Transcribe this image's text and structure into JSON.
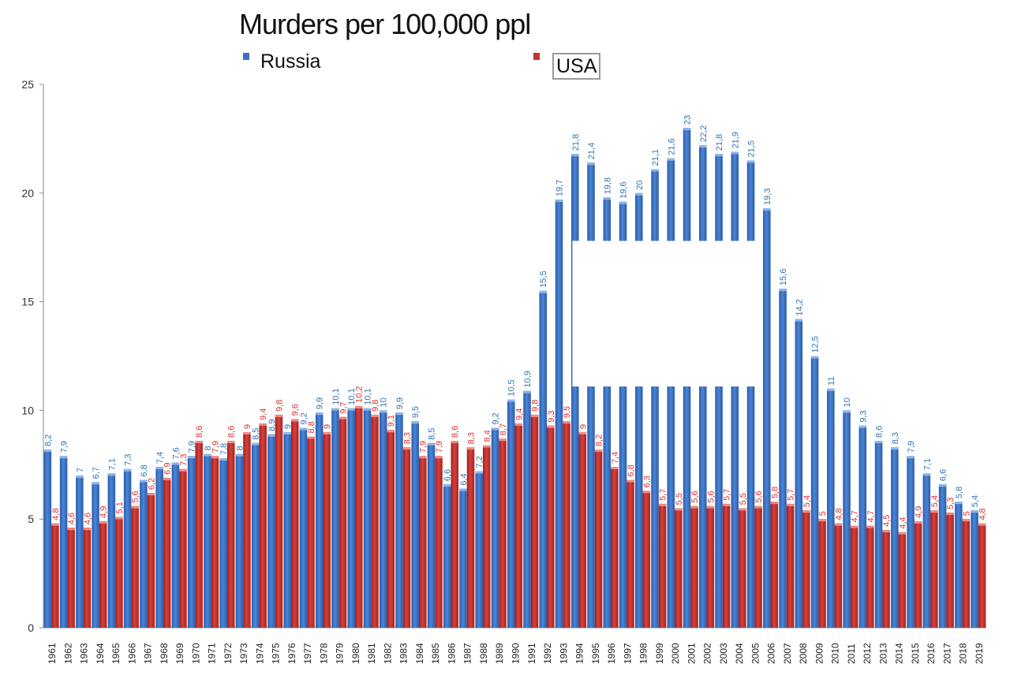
{
  "chart_data": {
    "type": "bar",
    "title": "Murders per 100,000 ppl",
    "xlabel": "",
    "ylabel": "",
    "ylim": [
      0,
      25
    ],
    "yticks": [
      0,
      5,
      10,
      15,
      20,
      25
    ],
    "grid": false,
    "legend_placement": "top",
    "categories": [
      "1961",
      "1962",
      "1963",
      "1964",
      "1965",
      "1966",
      "1967",
      "1968",
      "1969",
      "1970",
      "1971",
      "1972",
      "1973",
      "1974",
      "1975",
      "1976",
      "1977",
      "1978",
      "1979",
      "1980",
      "1981",
      "1982",
      "1983",
      "1984",
      "1985",
      "1986",
      "1987",
      "1988",
      "1989",
      "1990",
      "1991",
      "1992",
      "1993",
      "1994",
      "1995",
      "1996",
      "1997",
      "1998",
      "1999",
      "2000",
      "2001",
      "2002",
      "2003",
      "2004",
      "2005",
      "2006",
      "2007",
      "2008",
      "2009",
      "2010",
      "2011",
      "2012",
      "2013",
      "2014",
      "2015",
      "2016",
      "2017",
      "2018",
      "2019"
    ],
    "series": [
      {
        "name": "Russia",
        "color": "#3a6fc4",
        "values": [
          8.2,
          7.9,
          7,
          6.7,
          7.1,
          7.3,
          6.8,
          7.4,
          7.6,
          7.9,
          8,
          7.8,
          8,
          8.5,
          8.9,
          9,
          9.2,
          9.9,
          10.1,
          10.1,
          10.1,
          10,
          9.9,
          9.5,
          8.5,
          6.6,
          6.4,
          7.2,
          9.2,
          10.5,
          10.9,
          15.5,
          19.7,
          21.8,
          21.4,
          19.8,
          19.6,
          20,
          21.1,
          21.6,
          23,
          22.2,
          21.8,
          21.9,
          21.5,
          19.3,
          15.6,
          14.2,
          12.5,
          11,
          10,
          9.3,
          8.6,
          8.3,
          7.9,
          7.1,
          6.6,
          5.8,
          5.4
        ],
        "labels": [
          "8,2",
          "7,9",
          "7",
          "6,7",
          "7,1",
          "7,3",
          "6,8",
          "7,4",
          "7,6",
          "7,9",
          "8",
          "7,8",
          "8",
          "8,5",
          "8,9",
          "9",
          "9,2",
          "9,9",
          "10,1",
          "10,1",
          "10,1",
          "10",
          "9,9",
          "9,5",
          "8,5",
          "6,6",
          "6,4",
          "7,2",
          "9,2",
          "10,5",
          "10,9",
          "15,5",
          "19,7",
          "21,8",
          "21,4",
          "19,8",
          "19,6",
          "20",
          "21,1",
          "21,6",
          "23",
          "22,2",
          "21,8",
          "21,9",
          "21,5",
          "19,3",
          "15,6",
          "14,2",
          "12,5",
          "11",
          "10",
          "9,3",
          "8,6",
          "8,3",
          "7,9",
          "7,1",
          "6,6",
          "5,8",
          "5,4"
        ]
      },
      {
        "name": "USA",
        "color": "#c8302e",
        "values": [
          4.8,
          4.6,
          4.6,
          4.9,
          5.1,
          5.6,
          6.2,
          6.9,
          7.3,
          8.6,
          7.9,
          8.6,
          9,
          9.4,
          9.8,
          9.6,
          8.8,
          9,
          9.7,
          10.2,
          9.8,
          9.1,
          8.3,
          7.9,
          7.9,
          8.6,
          8.3,
          8.4,
          8.7,
          9.4,
          9.8,
          9.3,
          9.5,
          9,
          8.2,
          7.4,
          6.8,
          6.3,
          5.7,
          5.5,
          5.6,
          5.6,
          5.7,
          5.5,
          5.6,
          5.8,
          5.7,
          5.4,
          5,
          4.8,
          4.7,
          4.7,
          4.5,
          4.4,
          4.9,
          5.4,
          5.3,
          5,
          4.8
        ],
        "labels": [
          "4,8",
          "4,6",
          "4,6",
          "4,9",
          "5,1",
          "5,6",
          "6,2",
          "6,9",
          "7,3",
          "8,6",
          "7,9",
          "8,6",
          "9",
          "9,4",
          "9,8",
          "9,6",
          "8,8",
          "9",
          "9,7",
          "10,2",
          "9,8",
          "9,1",
          "8,3",
          "7,9",
          "7,9",
          "8,6",
          "8,3",
          "8,4",
          "8,7",
          "9,4",
          "9,8",
          "9,3",
          "9,5",
          "9",
          "8,2",
          "7,4",
          "6,8",
          "6,3",
          "5,7",
          "5,5",
          "5,6",
          "5,6",
          "5,7",
          "5,5",
          "5,6",
          "5,8",
          "5,7",
          "5,4",
          "5",
          "4,8",
          "4,7",
          "4,7",
          "4,5",
          "4,4",
          "4,9",
          "5,4",
          "5,3",
          "5",
          "4,8"
        ]
      }
    ],
    "overlay_band": {
      "from": 11.1,
      "to": 17.8,
      "years": [
        "1994",
        "2005"
      ]
    }
  }
}
